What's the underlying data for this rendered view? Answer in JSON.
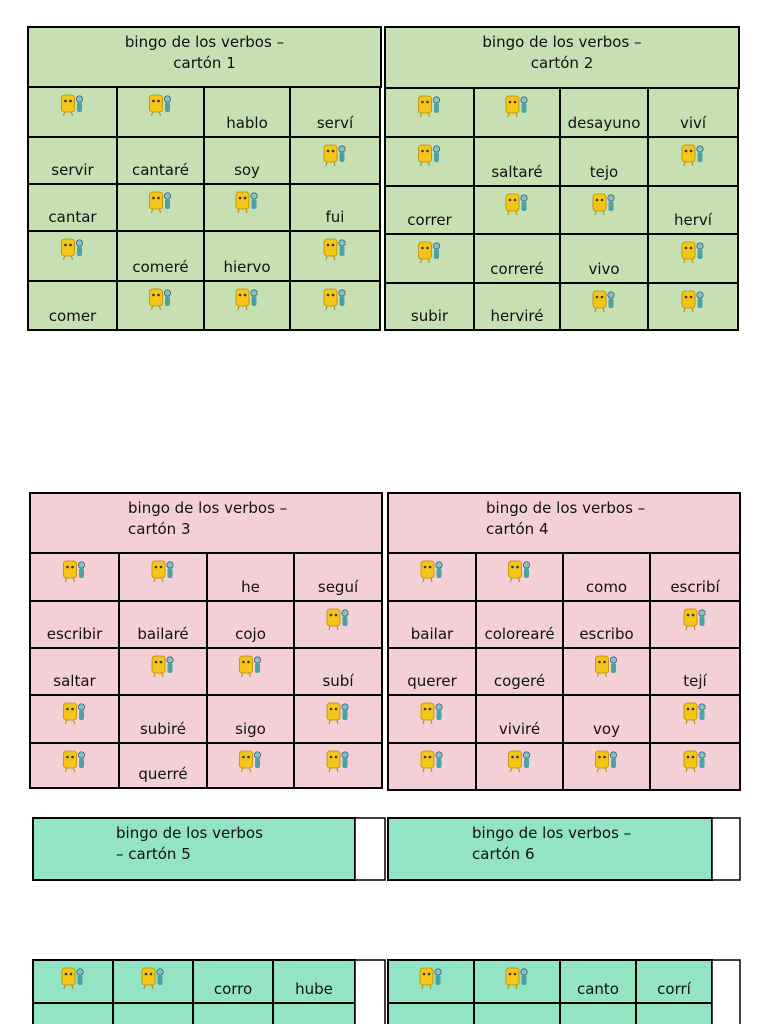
{
  "cards": [
    {
      "title": [
        "bingo de los verbos –",
        "cartón 1"
      ],
      "rows": [
        [
          null,
          null,
          "hablo",
          "serví"
        ],
        [
          "servir",
          "cantaré",
          "soy",
          null
        ],
        [
          "cantar",
          null,
          null,
          "fui"
        ],
        [
          null,
          "comeré",
          "hiervo",
          null
        ],
        [
          "comer",
          null,
          null,
          null
        ]
      ]
    },
    {
      "title": [
        "bingo de los verbos –",
        "cartón 2"
      ],
      "rows": [
        [
          null,
          null,
          "desayuno",
          "viví"
        ],
        [
          null,
          "saltaré",
          "tejo",
          null
        ],
        [
          "correr",
          null,
          null,
          "herví"
        ],
        [
          null,
          "correré",
          "vivo",
          null
        ],
        [
          "subir",
          "herviré",
          null,
          null
        ]
      ]
    },
    {
      "title": [
        "bingo de los verbos –",
        "cartón 3"
      ],
      "rows": [
        [
          null,
          null,
          "he",
          "seguí"
        ],
        [
          "escribir",
          "bailaré",
          "cojo",
          null
        ],
        [
          "saltar",
          null,
          null,
          "subí"
        ],
        [
          null,
          "subiré",
          "sigo",
          null
        ],
        [
          null,
          "querré",
          null,
          null
        ]
      ]
    },
    {
      "title": [
        "bingo de los verbos –",
        "cartón 4"
      ],
      "rows": [
        [
          null,
          null,
          "como",
          "escribí"
        ],
        [
          "bailar",
          "colorearé",
          "escribo",
          null
        ],
        [
          "querer",
          "cogeré",
          null,
          "tejí"
        ],
        [
          null,
          "viviré",
          "voy",
          null
        ],
        [
          null,
          null,
          null,
          null
        ]
      ]
    },
    {
      "title": [
        "bingo de los verbos",
        "– cartón 5"
      ],
      "rows": [
        [
          null,
          null,
          "corro",
          "hube"
        ]
      ]
    },
    {
      "title": [
        "bingo de los verbos –",
        "cartón 6"
      ],
      "rows": [
        [
          null,
          null,
          "canto",
          "corrí"
        ]
      ]
    }
  ]
}
